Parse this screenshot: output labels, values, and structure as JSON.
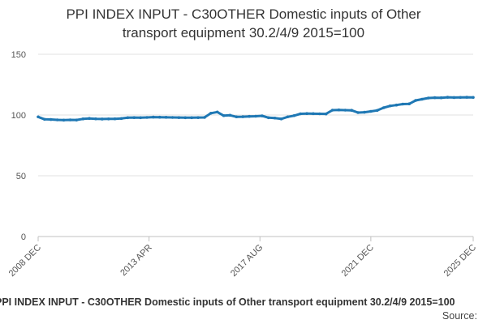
{
  "chart_data": {
    "type": "line",
    "title_lines": [
      "PPI INDEX INPUT - C30OTHER Domestic inputs of Other",
      "transport equipment 30.2/4/9 2015=100"
    ],
    "xlabel": "",
    "ylabel": "",
    "ylim": [
      0,
      150
    ],
    "y_ticks": [
      0,
      50,
      100,
      150
    ],
    "x_tick_labels": [
      "2008 DEC",
      "2013 APR",
      "2017 AUG",
      "2021 DEC",
      "2025 DEC"
    ],
    "x_range": [
      "2008 DEC",
      "2025 DEC"
    ],
    "grid": "horizontal",
    "legend": "none",
    "marker": "point",
    "series": [
      {
        "color": "#1f78b4",
        "x": [
          "2008 DEC",
          "2009 MAR",
          "2009 JUN",
          "2009 SEP",
          "2009 DEC",
          "2010 MAR",
          "2010 JUN",
          "2010 SEP",
          "2010 DEC",
          "2011 MAR",
          "2011 JUN",
          "2011 SEP",
          "2011 DEC",
          "2012 MAR",
          "2012 JUN",
          "2012 SEP",
          "2012 DEC",
          "2013 MAR",
          "2013 JUN",
          "2013 SEP",
          "2013 DEC",
          "2014 MAR",
          "2014 JUN",
          "2014 SEP",
          "2014 DEC",
          "2015 MAR",
          "2015 JUN",
          "2015 SEP",
          "2015 DEC",
          "2016 MAR",
          "2016 JUN",
          "2016 SEP",
          "2016 DEC",
          "2017 MAR",
          "2017 JUN",
          "2017 SEP",
          "2017 DEC",
          "2018 MAR",
          "2018 JUN",
          "2018 SEP",
          "2018 DEC",
          "2019 MAR",
          "2019 JUN",
          "2019 SEP",
          "2019 DEC",
          "2020 MAR",
          "2020 JUN",
          "2020 SEP",
          "2020 DEC",
          "2021 MAR",
          "2021 JUN",
          "2021 SEP",
          "2021 DEC",
          "2022 MAR",
          "2022 JUN",
          "2022 SEP",
          "2022 DEC",
          "2023 MAR",
          "2023 JUN",
          "2023 SEP",
          "2023 DEC",
          "2024 MAR",
          "2024 JUN",
          "2024 SEP",
          "2024 DEC",
          "2025 MAR",
          "2025 JUN",
          "2025 SEP",
          "2025 DEC"
        ],
        "values": [
          98.5,
          96.5,
          96.3,
          96.0,
          95.8,
          96.0,
          95.9,
          96.8,
          97.2,
          96.9,
          96.7,
          96.8,
          96.9,
          97.1,
          97.8,
          97.9,
          97.8,
          98.0,
          98.3,
          98.2,
          98.1,
          98.0,
          97.9,
          97.8,
          97.8,
          97.9,
          98.0,
          101.5,
          102.5,
          99.5,
          99.8,
          98.5,
          98.6,
          98.9,
          99.0,
          99.3,
          97.8,
          97.5,
          96.8,
          98.5,
          99.5,
          101.0,
          101.2,
          101.1,
          101.0,
          100.9,
          104.0,
          104.2,
          104.0,
          103.9,
          102.0,
          102.3,
          103.0,
          103.8,
          106.0,
          107.5,
          108.2,
          109.0,
          109.2,
          112.0,
          113.0,
          114.0,
          114.3,
          114.2,
          114.6,
          114.4,
          114.5,
          114.6,
          114.5
        ]
      }
    ]
  },
  "footer": {
    "caption": "PPI INDEX INPUT - C30OTHER Domestic inputs of Other transport equipment 30.2/4/9 2015=100",
    "source_label": "Source:"
  }
}
